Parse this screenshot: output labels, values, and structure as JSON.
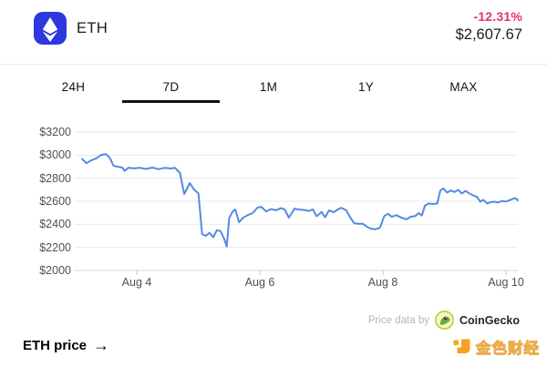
{
  "header": {
    "coin_symbol": "ETH",
    "change_percent": "-12.31%",
    "price": "$2,607.67"
  },
  "tabs": {
    "items": [
      {
        "label": "24H",
        "active": false
      },
      {
        "label": "7D",
        "active": true
      },
      {
        "label": "1M",
        "active": false
      },
      {
        "label": "1Y",
        "active": false
      },
      {
        "label": "MAX",
        "active": false
      }
    ]
  },
  "chart_data": {
    "type": "line",
    "title": "",
    "currency": "USD",
    "line_color": "#558be0",
    "grid": true,
    "legend": "none",
    "xlim": [
      2.99,
      10.19
    ],
    "ylim": [
      2000,
      3200
    ],
    "x_unit": "day of August",
    "y_ticks": [
      {
        "label": "$3200",
        "value": 3200
      },
      {
        "label": "$3000",
        "value": 3000
      },
      {
        "label": "$2800",
        "value": 2800
      },
      {
        "label": "$2600",
        "value": 2600
      },
      {
        "label": "$2400",
        "value": 2400
      },
      {
        "label": "$2200",
        "value": 2200
      },
      {
        "label": "$2000",
        "value": 2000
      }
    ],
    "x_ticks": [
      {
        "label": "Aug 4",
        "value": 4
      },
      {
        "label": "Aug 6",
        "value": 6
      },
      {
        "label": "Aug 8",
        "value": 8
      },
      {
        "label": "Aug 10",
        "value": 10
      }
    ],
    "x": [
      3.11,
      3.18,
      3.26,
      3.34,
      3.42,
      3.5,
      3.56,
      3.62,
      3.7,
      3.76,
      3.8,
      3.86,
      3.95,
      4.05,
      4.15,
      4.25,
      4.35,
      4.45,
      4.55,
      4.62,
      4.7,
      4.77,
      4.86,
      4.93,
      5.0,
      5.06,
      5.12,
      5.18,
      5.24,
      5.3,
      5.36,
      5.42,
      5.46,
      5.5,
      5.56,
      5.6,
      5.66,
      5.72,
      5.8,
      5.88,
      5.96,
      6.02,
      6.1,
      6.18,
      6.26,
      6.34,
      6.4,
      6.47,
      6.56,
      6.64,
      6.72,
      6.8,
      6.86,
      6.92,
      7.0,
      7.06,
      7.12,
      7.2,
      7.26,
      7.32,
      7.4,
      7.47,
      7.53,
      7.6,
      7.67,
      7.74,
      7.8,
      7.88,
      7.95,
      8.02,
      8.08,
      8.14,
      8.22,
      8.3,
      8.38,
      8.45,
      8.52,
      8.58,
      8.63,
      8.68,
      8.74,
      8.82,
      8.88,
      8.93,
      8.98,
      9.04,
      9.1,
      9.16,
      9.22,
      9.28,
      9.34,
      9.4,
      9.46,
      9.52,
      9.58,
      9.63,
      9.69,
      9.75,
      9.81,
      9.87,
      9.93,
      9.99,
      10.05,
      10.11,
      10.15,
      10.19
    ],
    "values": [
      2966,
      2930,
      2955,
      2972,
      3002,
      3008,
      2976,
      2908,
      2898,
      2893,
      2864,
      2890,
      2885,
      2890,
      2880,
      2892,
      2878,
      2890,
      2884,
      2890,
      2845,
      2662,
      2758,
      2700,
      2668,
      2315,
      2300,
      2326,
      2288,
      2350,
      2340,
      2272,
      2208,
      2455,
      2515,
      2528,
      2418,
      2455,
      2480,
      2497,
      2545,
      2552,
      2512,
      2532,
      2522,
      2540,
      2530,
      2458,
      2536,
      2528,
      2524,
      2516,
      2530,
      2470,
      2508,
      2460,
      2520,
      2505,
      2527,
      2543,
      2522,
      2457,
      2410,
      2405,
      2405,
      2378,
      2362,
      2358,
      2371,
      2471,
      2492,
      2466,
      2479,
      2457,
      2444,
      2466,
      2471,
      2497,
      2476,
      2562,
      2580,
      2576,
      2580,
      2693,
      2711,
      2675,
      2694,
      2680,
      2699,
      2667,
      2690,
      2668,
      2652,
      2640,
      2597,
      2612,
      2581,
      2592,
      2596,
      2589,
      2602,
      2598,
      2607,
      2621,
      2627,
      2608
    ]
  },
  "attribution": {
    "prefix": "Price data by",
    "source": "CoinGecko"
  },
  "footer": {
    "label": "ETH price",
    "arrow": "→"
  },
  "watermark": {
    "label": "金色财经"
  },
  "colors": {
    "change_negative": "#e5326e",
    "eth_logo_bg": "#2d38dd",
    "chart_line": "#558be0",
    "coingecko_green": "#8bc53f",
    "jinse_orange": "#f6a21f"
  }
}
